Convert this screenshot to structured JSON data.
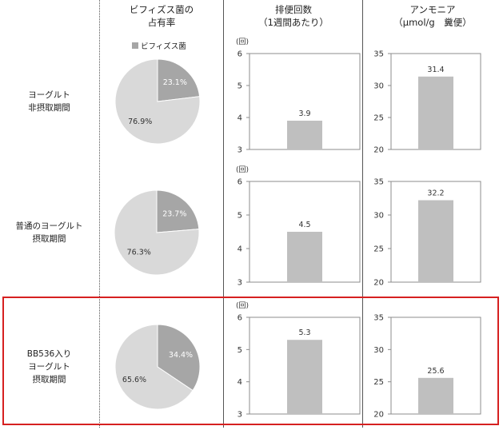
{
  "headers": {
    "pie": [
      "ビフィズス菌の",
      "占有率"
    ],
    "freq": [
      "排便回数",
      "（1週間あたり）"
    ],
    "ammonia": [
      "アンモニア",
      "（μmol/g　糞便）"
    ]
  },
  "legend": {
    "label": "ビフィズス菌"
  },
  "unit_label": "(回)",
  "colors": {
    "bifido": "#a6a6a6",
    "other": "#d9d9d9",
    "bar": "#bfbfbf",
    "highlight": "#d62020"
  },
  "rows": [
    {
      "label": [
        "ヨーグルト",
        "非摂取期間"
      ]
    },
    {
      "label": [
        "普通のヨーグルト",
        "摂取期間"
      ]
    },
    {
      "label": [
        "BB536入り",
        "ヨーグルト",
        "摂取期間"
      ]
    }
  ],
  "chart_data": [
    {
      "type": "pie",
      "row": 0,
      "values": [
        23.1,
        76.9
      ],
      "labels": [
        "23.1%",
        "76.9%"
      ],
      "categories": [
        "ビフィズス菌",
        ""
      ]
    },
    {
      "type": "pie",
      "row": 1,
      "values": [
        23.7,
        76.3
      ],
      "labels": [
        "23.7%",
        "76.3%"
      ],
      "categories": [
        "ビフィズス菌",
        ""
      ]
    },
    {
      "type": "pie",
      "row": 2,
      "values": [
        34.4,
        65.6
      ],
      "labels": [
        "34.4%",
        "65.6%"
      ],
      "categories": [
        "ビフィズス菌",
        ""
      ]
    },
    {
      "type": "bar",
      "row": 0,
      "values": [
        3.9
      ],
      "labels": [
        "3.9"
      ],
      "ylim": [
        3,
        6
      ],
      "yticks": [
        "3",
        "4",
        "5",
        "6"
      ],
      "ylabel": "(回)"
    },
    {
      "type": "bar",
      "row": 1,
      "values": [
        4.5
      ],
      "labels": [
        "4.5"
      ],
      "ylim": [
        3,
        6
      ],
      "yticks": [
        "3",
        "4",
        "5",
        "6"
      ],
      "ylabel": "(回)"
    },
    {
      "type": "bar",
      "row": 2,
      "values": [
        5.3
      ],
      "labels": [
        "5.3"
      ],
      "ylim": [
        3,
        6
      ],
      "yticks": [
        "3",
        "4",
        "5",
        "6"
      ],
      "ylabel": "(回)"
    },
    {
      "type": "bar",
      "row": 0,
      "values": [
        31.4
      ],
      "labels": [
        "31.4"
      ],
      "ylim": [
        20,
        35
      ],
      "yticks": [
        "20",
        "25",
        "30",
        "35"
      ]
    },
    {
      "type": "bar",
      "row": 1,
      "values": [
        32.2
      ],
      "labels": [
        "32.2"
      ],
      "ylim": [
        20,
        35
      ],
      "yticks": [
        "20",
        "25",
        "30",
        "35"
      ]
    },
    {
      "type": "bar",
      "row": 2,
      "values": [
        25.6
      ],
      "labels": [
        "25.6"
      ],
      "ylim": [
        20,
        35
      ],
      "yticks": [
        "20",
        "25",
        "30",
        "35"
      ]
    }
  ]
}
